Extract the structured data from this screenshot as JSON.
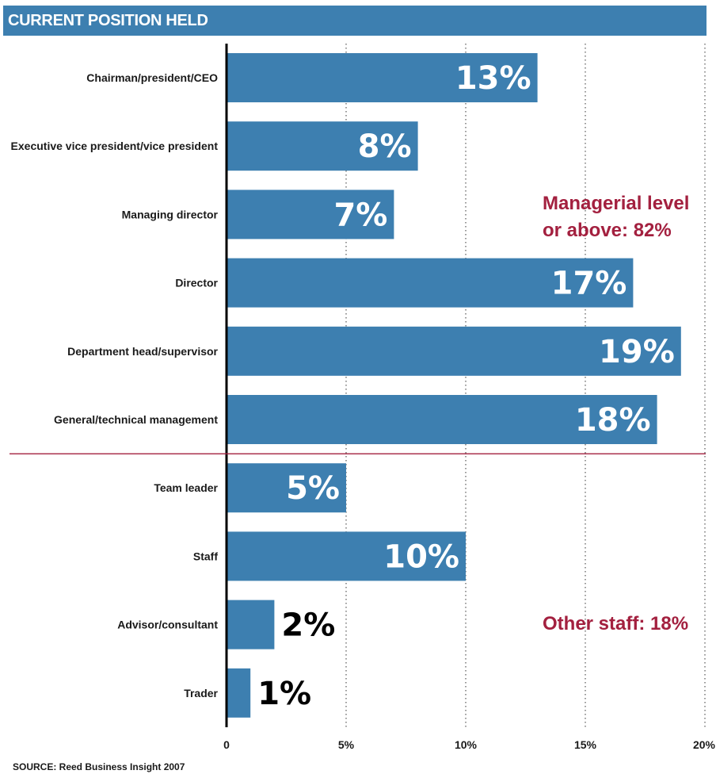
{
  "title": "CURRENT POSITION HELD",
  "source": "SOURCE: Reed Business Insight 2007",
  "colors": {
    "bar": "#3d7fb0",
    "divider": "#a3203f",
    "annotation": "#a3203f",
    "label_inside": "#ffffff",
    "label_outside": "#000000"
  },
  "chart_data": {
    "type": "bar",
    "orientation": "horizontal",
    "title": "CURRENT POSITION HELD",
    "categories": [
      "Chairman/president/CEO",
      "Executive vice president/vice president",
      "Managing director",
      "Director",
      "Department head/supervisor",
      "General/technical management",
      "Team leader",
      "Staff",
      "Advisor/consultant",
      "Trader"
    ],
    "values": [
      13,
      8,
      7,
      17,
      19,
      18,
      5,
      10,
      2,
      1
    ],
    "value_labels": [
      "13%",
      "8%",
      "7%",
      "17%",
      "19%",
      "18%",
      "5%",
      "10%",
      "2%",
      "1%"
    ],
    "xlim": [
      0,
      20
    ],
    "ticks": [
      0,
      5,
      10,
      15,
      20
    ],
    "tick_labels": [
      "0",
      "5%",
      "10%",
      "15%",
      "20%"
    ],
    "grid": "vertical dotted",
    "groups": [
      {
        "label": "Managerial level",
        "label_line2": "or above: 82%",
        "count": 6
      },
      {
        "label": "Other staff: 18%",
        "count": 4
      }
    ]
  }
}
